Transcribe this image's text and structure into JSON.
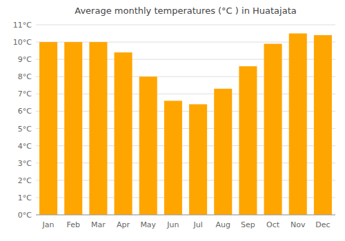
{
  "chart_data": {
    "type": "bar",
    "title": "Average monthly temperatures (°C ) in Huatajata",
    "categories": [
      "Jan",
      "Feb",
      "Mar",
      "Apr",
      "May",
      "Jun",
      "Jul",
      "Aug",
      "Sep",
      "Oct",
      "Nov",
      "Dec"
    ],
    "values": [
      10.0,
      10.0,
      10.0,
      9.4,
      8.0,
      6.6,
      6.4,
      7.3,
      8.6,
      9.9,
      10.5,
      10.4
    ],
    "color": "#FFA500",
    "ylim": [
      0,
      11
    ],
    "yticks": [
      {
        "value": 0,
        "label": "0°C"
      },
      {
        "value": 1,
        "label": "1°C"
      },
      {
        "value": 2,
        "label": "2°C"
      },
      {
        "value": 3,
        "label": "3°C"
      },
      {
        "value": 4,
        "label": "4°C"
      },
      {
        "value": 5,
        "label": "5°C"
      },
      {
        "value": 6,
        "label": "6°C"
      },
      {
        "value": 7,
        "label": "7°C"
      },
      {
        "value": 8,
        "label": "8°C"
      },
      {
        "value": 9,
        "label": "9°C"
      },
      {
        "value": 10,
        "label": "10°C"
      },
      {
        "value": 11,
        "label": "11°C"
      }
    ],
    "grid": true
  }
}
